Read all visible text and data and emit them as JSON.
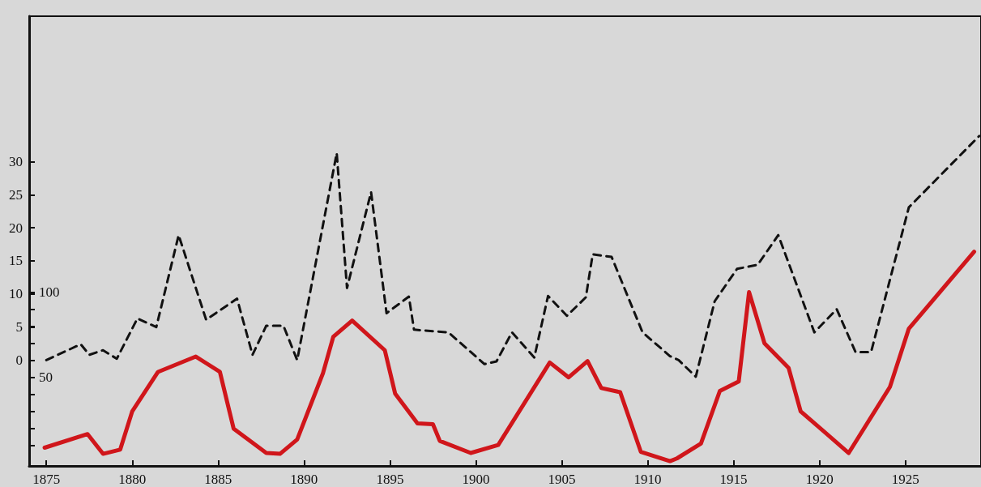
{
  "chart_data": {
    "type": "line",
    "marker": "none",
    "xlim": [
      1874,
      1929.4
    ],
    "xticks": [
      1875,
      1880,
      1885,
      1890,
      1895,
      1900,
      1905,
      1910,
      1915,
      1920,
      1925
    ],
    "ylim": [
      -16,
      52
    ],
    "yticks": [
      0,
      5,
      10,
      15,
      20,
      25,
      30
    ],
    "y2lim": [
      -2,
      262
    ],
    "y2ticks": [
      {
        "value": 10,
        "label": null
      },
      {
        "value": 20,
        "label": null
      },
      {
        "value": 30,
        "label": null
      },
      {
        "value": 40,
        "label": null
      },
      50,
      {
        "value": 60,
        "label": null
      },
      {
        "value": 70,
        "label": null
      },
      {
        "value": 80,
        "label": null
      },
      {
        "value": 90,
        "label": null
      },
      100
    ],
    "series": [
      {
        "color": "#111111",
        "line_style": "dashed",
        "x": [
          1875.0,
          1877.0,
          1877.5,
          1878.3,
          1879.1,
          1880.3,
          1881.4,
          1882.7,
          1884.3,
          1886.1,
          1887.0,
          1887.8,
          1888.8,
          1889.6,
          1891.9,
          1892.5,
          1893.9,
          1894.8,
          1896.1,
          1896.4,
          1898.4,
          1900.5,
          1901.2,
          1902.1,
          1903.4,
          1904.2,
          1905.3,
          1906.4,
          1906.8,
          1907.9,
          1909.7,
          1911.3,
          1911.8,
          1912.8,
          1913.9,
          1915.2,
          1916.4,
          1917.6,
          1919.7,
          1921.0,
          1922.1,
          1923.0,
          1925.2,
          1929.3
        ],
        "values": [
          0.0,
          2.4,
          0.8,
          1.5,
          0.2,
          6.3,
          5.0,
          18.9,
          6.1,
          9.3,
          0.8,
          5.2,
          5.2,
          0.0,
          31.3,
          10.9,
          25.4,
          7.1,
          9.6,
          4.6,
          4.2,
          -0.6,
          -0.2,
          4.2,
          0.4,
          9.7,
          6.7,
          9.5,
          16.0,
          15.6,
          4.2,
          0.6,
          0.0,
          -2.5,
          8.9,
          13.8,
          14.4,
          18.9,
          4.2,
          7.7,
          1.2,
          1.2,
          23.1,
          33.9
        ]
      },
      {
        "color": "#d0161b",
        "line_style": "solid",
        "axis": "y2",
        "x": [
          1874.9,
          1877.4,
          1878.3,
          1879.3,
          1880.0,
          1881.5,
          1883.7,
          1885.1,
          1885.9,
          1887.8,
          1888.6,
          1889.6,
          1891.1,
          1891.7,
          1892.8,
          1894.7,
          1895.3,
          1896.6,
          1897.5,
          1897.9,
          1899.7,
          1901.3,
          1904.3,
          1905.4,
          1906.5,
          1907.3,
          1908.4,
          1909.6,
          1911.3,
          1911.7,
          1913.1,
          1914.2,
          1915.3,
          1915.9,
          1916.8,
          1918.2,
          1918.9,
          1921.7,
          1924.1,
          1925.2,
          1929.0
        ],
        "values": [
          8.7,
          16.7,
          5.1,
          7.6,
          30.1,
          53.2,
          62.2,
          53.2,
          19.9,
          5.6,
          5.1,
          13.5,
          52.4,
          73.8,
          83.3,
          65.9,
          40.5,
          23.0,
          22.5,
          12.7,
          5.6,
          10.3,
          58.7,
          50.0,
          59.5,
          43.7,
          41.3,
          6.3,
          0.8,
          2.4,
          11.1,
          42.0,
          47.6,
          100,
          69.9,
          55.6,
          30.1,
          5.6,
          44.4,
          78.6,
          123.8
        ]
      }
    ]
  }
}
